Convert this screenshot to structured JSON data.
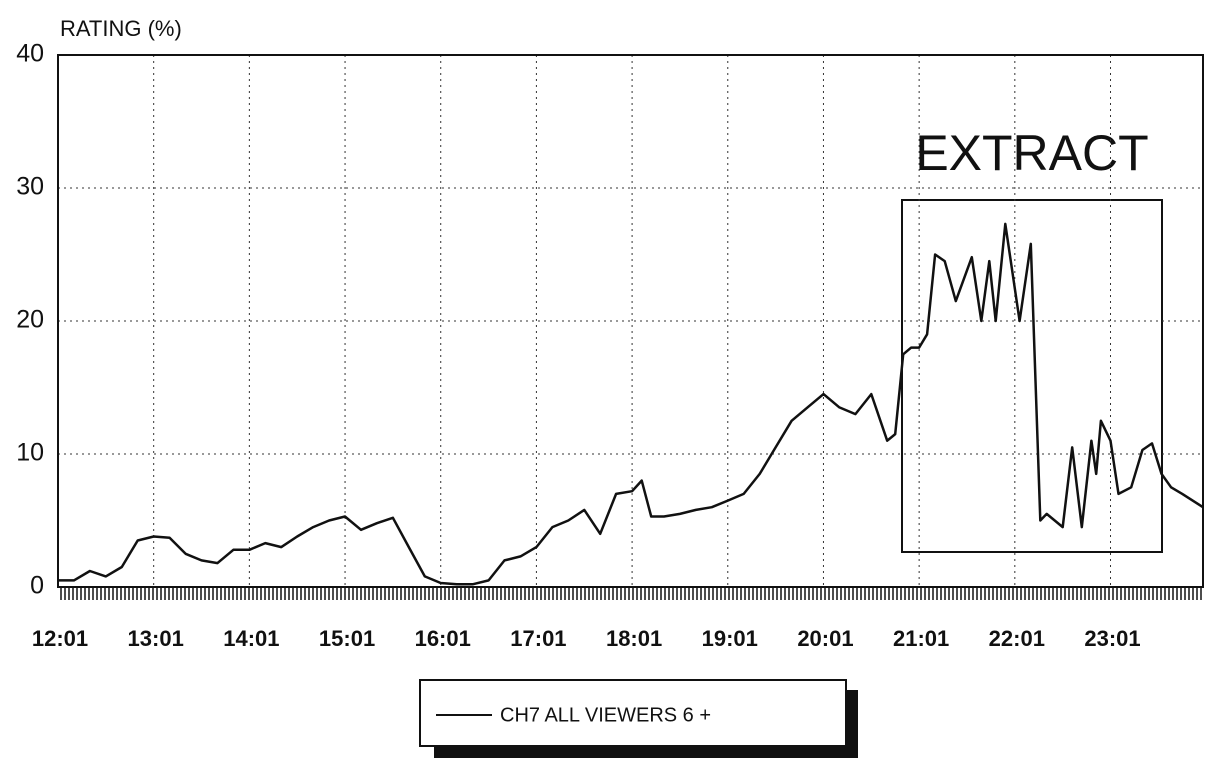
{
  "chart_data": {
    "type": "line",
    "y_label": "RATING (%)",
    "annotation": "EXTRACT",
    "x": [
      "12:01",
      "12:11",
      "12:21",
      "12:31",
      "12:41",
      "12:51",
      "13:01",
      "13:11",
      "13:21",
      "13:31",
      "13:41",
      "13:51",
      "14:01",
      "14:11",
      "14:21",
      "14:31",
      "14:41",
      "14:51",
      "15:01",
      "15:11",
      "15:21",
      "15:31",
      "15:41",
      "15:51",
      "16:01",
      "16:11",
      "16:21",
      "16:31",
      "16:41",
      "16:51",
      "17:01",
      "17:11",
      "17:21",
      "17:31",
      "17:41",
      "17:51",
      "18:01",
      "18:07",
      "18:13",
      "18:21",
      "18:31",
      "18:41",
      "18:51",
      "19:01",
      "19:11",
      "19:21",
      "19:31",
      "19:41",
      "19:51",
      "20:01",
      "20:11",
      "20:21",
      "20:31",
      "20:41",
      "20:46",
      "20:51",
      "20:56",
      "21:01",
      "21:06",
      "21:11",
      "21:17",
      "21:24",
      "21:34",
      "21:40",
      "21:45",
      "21:49",
      "21:55",
      "22:04",
      "22:11",
      "22:17",
      "22:21",
      "22:31",
      "22:37",
      "22:43",
      "22:49",
      "22:52",
      "22:55",
      "23:01",
      "23:06",
      "23:14",
      "23:21",
      "23:27",
      "23:33",
      "23:39",
      "23:46",
      "23:59"
    ],
    "series": [
      {
        "name": "CH7 ALL VIEWERS 6 +",
        "color": "#111111",
        "values": [
          0.5,
          0.5,
          1.2,
          0.8,
          1.5,
          3.5,
          3.8,
          3.7,
          2.5,
          2.0,
          1.8,
          2.8,
          2.8,
          3.3,
          3.0,
          3.8,
          4.5,
          5.0,
          5.3,
          4.3,
          4.8,
          5.2,
          3.0,
          0.8,
          0.3,
          0.2,
          0.2,
          0.5,
          2.0,
          2.3,
          3.0,
          4.5,
          5.0,
          5.8,
          4.0,
          7.0,
          7.2,
          8.0,
          5.3,
          5.3,
          5.5,
          5.8,
          6.0,
          6.5,
          7.0,
          8.5,
          10.5,
          12.5,
          13.5,
          14.5,
          13.5,
          13.0,
          14.5,
          11.0,
          11.5,
          17.5,
          18.0,
          18.0,
          19.0,
          25.0,
          24.5,
          21.5,
          24.8,
          20.0,
          24.5,
          20.0,
          27.3,
          20.0,
          25.8,
          5.0,
          5.5,
          4.5,
          10.5,
          4.5,
          11.0,
          8.5,
          12.5,
          11.0,
          7.0,
          7.5,
          10.3,
          10.8,
          8.5,
          7.5,
          7.0,
          6.0
        ]
      }
    ],
    "xlim": [
      "12:01",
      "23:59"
    ],
    "xticks": [
      "12:01",
      "13:01",
      "14:01",
      "15:01",
      "16:01",
      "17:01",
      "18:01",
      "19:01",
      "20:01",
      "21:01",
      "22:01",
      "23:01"
    ],
    "ylim": [
      0,
      40
    ],
    "yticks": [
      0,
      10,
      20,
      30,
      40
    ],
    "grid": true
  }
}
